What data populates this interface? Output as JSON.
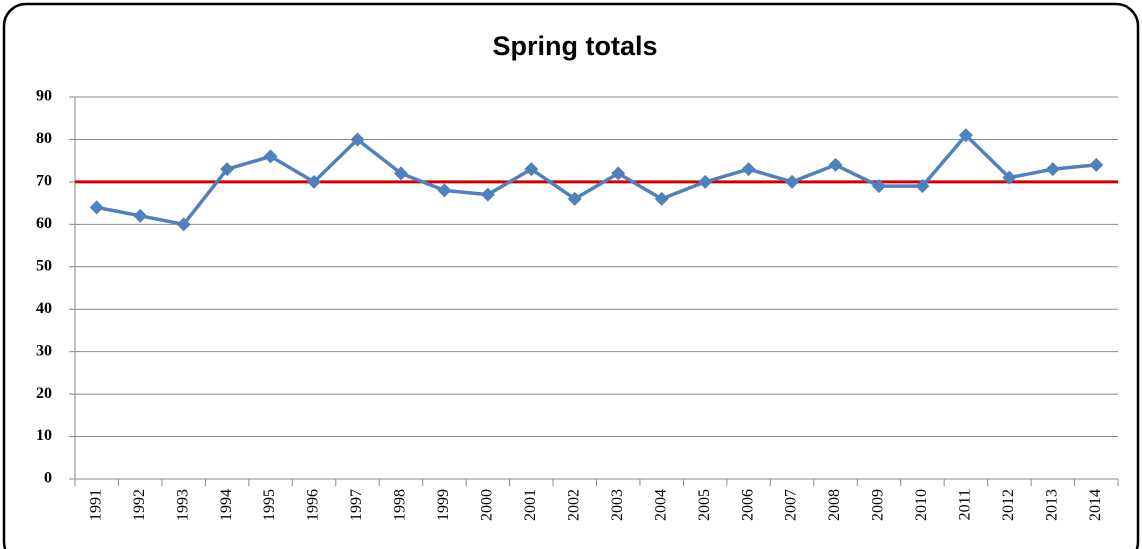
{
  "chart_data": {
    "type": "line",
    "title": "Spring totals",
    "categories": [
      "1991",
      "1992",
      "1993",
      "1994",
      "1995",
      "1996",
      "1997",
      "1998",
      "1999",
      "2000",
      "2001",
      "2002",
      "2003",
      "2004",
      "2005",
      "2006",
      "2007",
      "2008",
      "2009",
      "2010",
      "2011",
      "2012",
      "2013",
      "2014"
    ],
    "values": [
      64,
      62,
      60,
      73,
      76,
      70,
      80,
      72,
      68,
      67,
      73,
      66,
      72,
      66,
      70,
      73,
      70,
      74,
      69,
      69,
      81,
      71,
      73,
      74
    ],
    "color": "#4f81bd",
    "reference_line": {
      "value": 70,
      "color": "#d00000"
    },
    "ylim": [
      0,
      90
    ],
    "yticks": [
      0,
      10,
      20,
      30,
      40,
      50,
      60,
      70,
      80,
      90
    ],
    "grid": true
  }
}
